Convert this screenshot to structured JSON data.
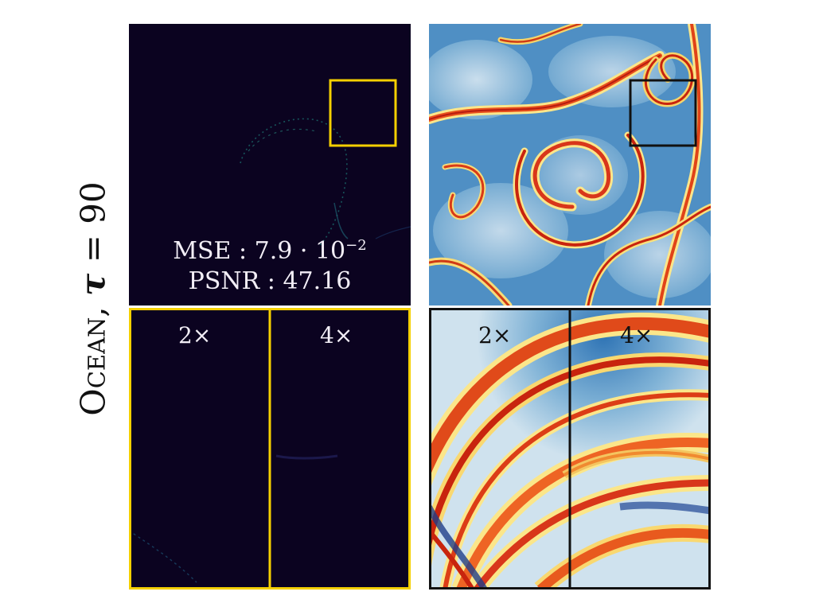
{
  "row_label": {
    "name": "Ocean",
    "tau_symbol": "τ",
    "equals": " = ",
    "tau_value": "90"
  },
  "metrics": {
    "mse_label": "MSE",
    "mse_mantissa": "7.9",
    "mse_base": "10",
    "mse_exponent": "−2",
    "psnr_label": "PSNR",
    "psnr_value": "47.16"
  },
  "zoom_labels": {
    "left": "2×",
    "right": "4×"
  },
  "colors": {
    "error_background": "#0b0320",
    "error_highlight_box": "#f5d000",
    "gt_highlight_box": "#111111",
    "field_low": "#2a6bb0",
    "field_mid": "#cfe2ee",
    "field_high": "#c8240e"
  }
}
